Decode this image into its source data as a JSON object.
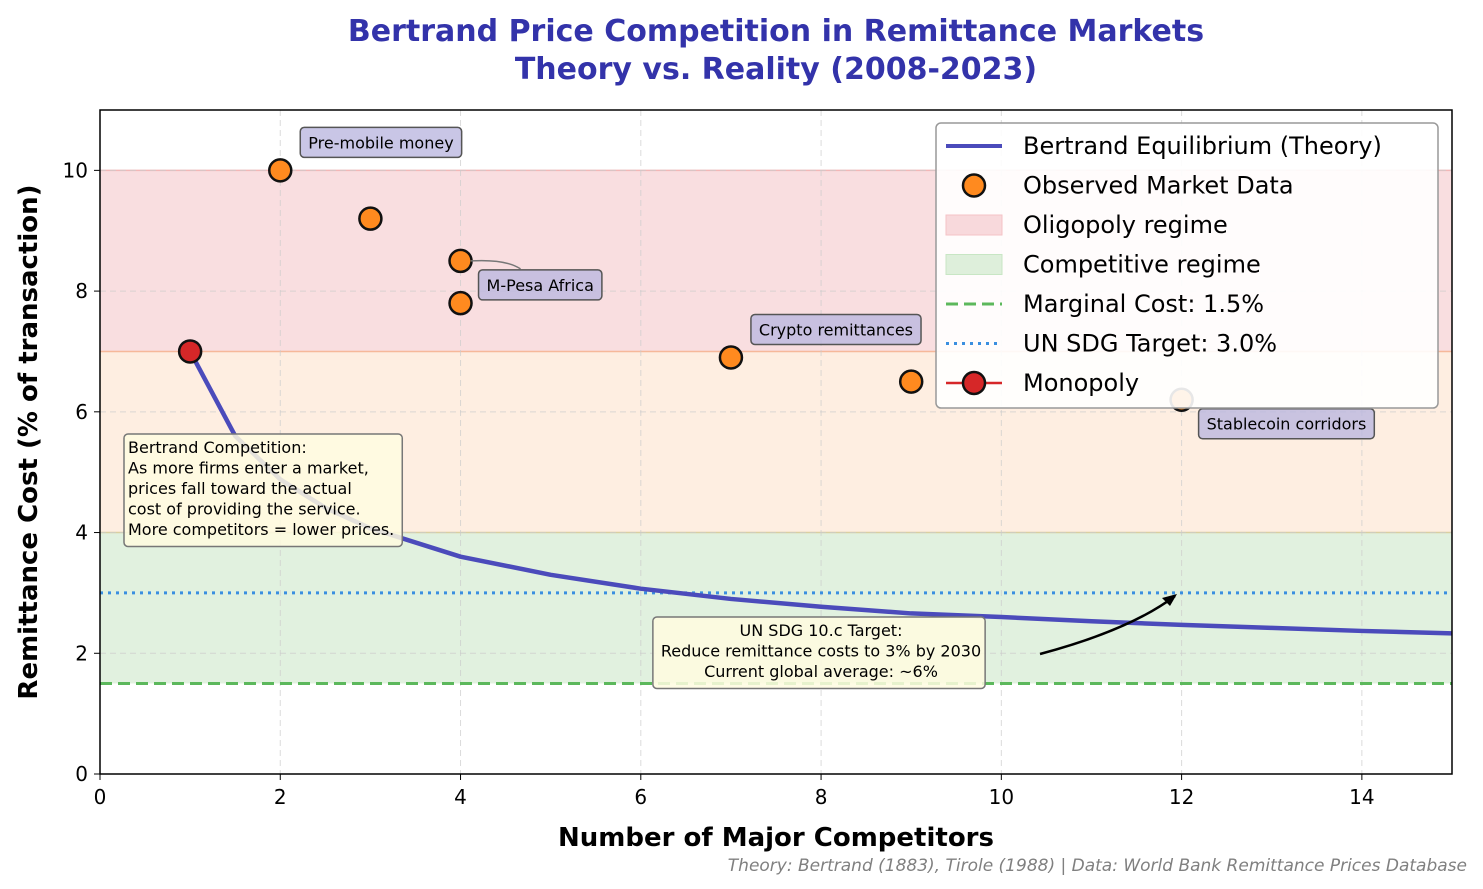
{
  "chart_data": {
    "type": "scatter",
    "title": [
      "Bertrand Price Competition in Remittance Markets",
      "Theory vs. Reality (2008-2023)"
    ],
    "xlabel": "Number of Major Competitors",
    "ylabel": "Remittance Cost (% of transaction)",
    "xlim": [
      0,
      15
    ],
    "ylim": [
      0,
      11
    ],
    "xticks": [
      0,
      2,
      4,
      6,
      8,
      10,
      12,
      14
    ],
    "yticks": [
      0,
      2,
      4,
      6,
      8,
      10
    ],
    "grid": true,
    "legend_placement": "top-right",
    "bands": [
      {
        "name": "Oligopoly regime",
        "y": [
          7,
          10
        ],
        "color": "#f4c2c6"
      },
      {
        "y": [
          4,
          7
        ],
        "color": "#fde0c8"
      },
      {
        "name": "Competitive regime",
        "y": [
          1.5,
          4
        ],
        "color": "#c8e6c4"
      }
    ],
    "theory_curve": {
      "name": "Bertrand Equilibrium (Theory)",
      "color": "#4b4bbb",
      "x": [
        1,
        1.5,
        2,
        2.5,
        3,
        4,
        5,
        6,
        7,
        8,
        9,
        10,
        11,
        12,
        13,
        14,
        15
      ],
      "y": [
        7.0,
        5.6,
        4.88,
        4.41,
        4.07,
        3.6,
        3.3,
        3.07,
        2.9,
        2.77,
        2.66,
        2.6,
        2.53,
        2.47,
        2.42,
        2.37,
        2.33
      ]
    },
    "observed": {
      "name": "Observed Market Data",
      "color": "#ff8a1f",
      "x": [
        2,
        3,
        4,
        4,
        7,
        9,
        12
      ],
      "y": [
        10.0,
        9.2,
        8.5,
        7.8,
        6.9,
        6.5,
        6.2
      ]
    },
    "monopoly": {
      "name": "Monopoly",
      "color": "#d62728",
      "x": 1,
      "y": 7.0
    },
    "marginal_cost": {
      "name": "Marginal Cost: 1.5%",
      "y": 1.5,
      "color": "#5cb85c"
    },
    "sdg_target": {
      "name": "UN SDG Target: 3.0%",
      "y": 3.0,
      "color": "#3a8fe0"
    },
    "point_labels": [
      {
        "text": "Pre-mobile money",
        "x": 2,
        "y": 10.0
      },
      {
        "text": "M-Pesa Africa",
        "x": 4,
        "y": 8.5
      },
      {
        "text": "Crypto remittances",
        "x": 7,
        "y": 6.9
      },
      {
        "text": "Stablecoin corridors",
        "x": 12,
        "y": 6.2
      }
    ],
    "annotations": {
      "bertrand": [
        "Bertrand Competition:",
        "As more firms enter a market,",
        "prices fall toward the actual",
        "cost of providing the service.",
        "More competitors = lower prices."
      ],
      "sdg": [
        "UN SDG 10.c Target:",
        "Reduce remittance costs to 3% by 2030",
        "Current global average: ~6%"
      ]
    },
    "credit": "Theory: Bertrand (1883), Tirole (1988) | Data: World Bank Remittance Prices Database"
  }
}
